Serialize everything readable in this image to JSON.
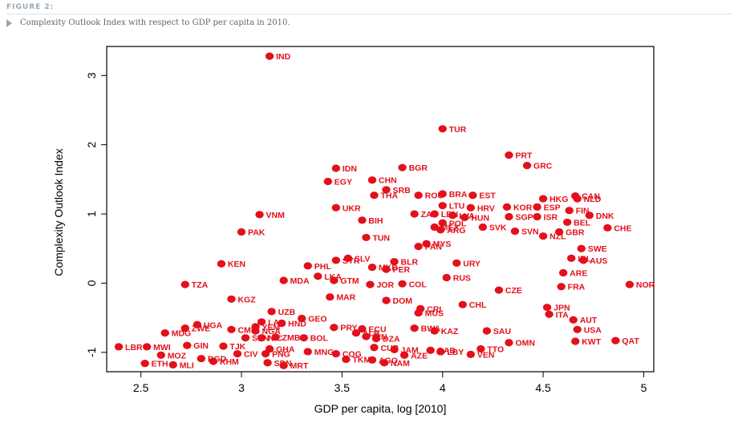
{
  "figure": {
    "label": "FIGURE 2:",
    "caption": "Complexity Outlook Index with respect to GDP per capita in 2010."
  },
  "chart_data": {
    "type": "scatter",
    "xlabel": "GDP per capita, log [2010]",
    "ylabel": "Complexity Outlook Index",
    "xlim": [
      2.33,
      5.05
    ],
    "ylim": [
      -1.28,
      3.42
    ],
    "xticks": [
      2.5,
      3,
      3.5,
      4,
      4.5,
      5
    ],
    "yticks": [
      -1,
      0,
      1,
      2,
      3
    ],
    "point_color": "#e3101b",
    "points": [
      {
        "label": "IND",
        "x": 3.14,
        "y": 3.28
      },
      {
        "label": "TUR",
        "x": 4.0,
        "y": 2.23
      },
      {
        "label": "PRT",
        "x": 4.33,
        "y": 1.85
      },
      {
        "label": "GRC",
        "x": 4.42,
        "y": 1.7
      },
      {
        "label": "IDN",
        "x": 3.47,
        "y": 1.66
      },
      {
        "label": "BGR",
        "x": 3.8,
        "y": 1.67
      },
      {
        "label": "EGY",
        "x": 3.43,
        "y": 1.47
      },
      {
        "label": "CHN",
        "x": 3.65,
        "y": 1.49
      },
      {
        "label": "SRB",
        "x": 3.72,
        "y": 1.35
      },
      {
        "label": "THA",
        "x": 3.66,
        "y": 1.27
      },
      {
        "label": "ROU",
        "x": 3.88,
        "y": 1.27
      },
      {
        "label": "BRA",
        "x": 4.0,
        "y": 1.29
      },
      {
        "label": "EST",
        "x": 4.15,
        "y": 1.27
      },
      {
        "label": "HKG",
        "x": 4.5,
        "y": 1.22
      },
      {
        "label": "CAN",
        "x": 4.66,
        "y": 1.26
      },
      {
        "label": "NLD",
        "x": 4.67,
        "y": 1.22
      },
      {
        "label": "LTU",
        "x": 4.0,
        "y": 1.12
      },
      {
        "label": "UKR",
        "x": 3.47,
        "y": 1.09
      },
      {
        "label": "HRV",
        "x": 4.14,
        "y": 1.09
      },
      {
        "label": "KOR",
        "x": 4.32,
        "y": 1.1
      },
      {
        "label": "ESP",
        "x": 4.47,
        "y": 1.1
      },
      {
        "label": "FIN",
        "x": 4.63,
        "y": 1.05
      },
      {
        "label": "VNM",
        "x": 3.09,
        "y": 0.99
      },
      {
        "label": "ZAF",
        "x": 3.86,
        "y": 1.0
      },
      {
        "label": "LBN",
        "x": 3.96,
        "y": 1.0
      },
      {
        "label": "LVA",
        "x": 4.05,
        "y": 0.98
      },
      {
        "label": "HUN",
        "x": 4.11,
        "y": 0.95
      },
      {
        "label": "SGP",
        "x": 4.33,
        "y": 0.96
      },
      {
        "label": "ISR",
        "x": 4.47,
        "y": 0.96
      },
      {
        "label": "DNK",
        "x": 4.73,
        "y": 0.98
      },
      {
        "label": "BIH",
        "x": 3.6,
        "y": 0.91
      },
      {
        "label": "POL",
        "x": 4.0,
        "y": 0.87
      },
      {
        "label": "BEL",
        "x": 4.62,
        "y": 0.88
      },
      {
        "label": "MEX",
        "x": 3.96,
        "y": 0.81
      },
      {
        "label": "ARG",
        "x": 3.99,
        "y": 0.77
      },
      {
        "label": "SVK",
        "x": 4.2,
        "y": 0.81
      },
      {
        "label": "CHE",
        "x": 4.82,
        "y": 0.8
      },
      {
        "label": "PAK",
        "x": 3.0,
        "y": 0.74
      },
      {
        "label": "SVN",
        "x": 4.36,
        "y": 0.75
      },
      {
        "label": "GBR",
        "x": 4.58,
        "y": 0.74
      },
      {
        "label": "NZL",
        "x": 4.5,
        "y": 0.68
      },
      {
        "label": "TUN",
        "x": 3.62,
        "y": 0.66
      },
      {
        "label": "MYS",
        "x": 3.92,
        "y": 0.57
      },
      {
        "label": "PAN",
        "x": 3.88,
        "y": 0.53
      },
      {
        "label": "SWE",
        "x": 4.69,
        "y": 0.5
      },
      {
        "label": "IRL",
        "x": 4.64,
        "y": 0.36
      },
      {
        "label": "AUS",
        "x": 4.7,
        "y": 0.33
      },
      {
        "label": "SLV",
        "x": 3.53,
        "y": 0.36
      },
      {
        "label": "SYR",
        "x": 3.47,
        "y": 0.33
      },
      {
        "label": "BLR",
        "x": 3.76,
        "y": 0.31
      },
      {
        "label": "URY",
        "x": 4.07,
        "y": 0.29
      },
      {
        "label": "KEN",
        "x": 2.9,
        "y": 0.28
      },
      {
        "label": "PHL",
        "x": 3.33,
        "y": 0.25
      },
      {
        "label": "MKD",
        "x": 3.65,
        "y": 0.23
      },
      {
        "label": "PER",
        "x": 3.72,
        "y": 0.2
      },
      {
        "label": "ARE",
        "x": 4.6,
        "y": 0.15
      },
      {
        "label": "LKA",
        "x": 3.38,
        "y": 0.1
      },
      {
        "label": "RUS",
        "x": 4.02,
        "y": 0.08
      },
      {
        "label": "MDA",
        "x": 3.21,
        "y": 0.04
      },
      {
        "label": "GTM",
        "x": 3.46,
        "y": 0.04
      },
      {
        "label": "JOR",
        "x": 3.64,
        "y": -0.02
      },
      {
        "label": "COL",
        "x": 3.8,
        "y": -0.01
      },
      {
        "label": "TZA",
        "x": 2.72,
        "y": -0.02
      },
      {
        "label": "FRA",
        "x": 4.59,
        "y": -0.05
      },
      {
        "label": "NOR",
        "x": 4.93,
        "y": -0.02
      },
      {
        "label": "CZE",
        "x": 4.28,
        "y": -0.1
      },
      {
        "label": "MAR",
        "x": 3.44,
        "y": -0.2
      },
      {
        "label": "DOM",
        "x": 3.72,
        "y": -0.25
      },
      {
        "label": "KGZ",
        "x": 2.95,
        "y": -0.23
      },
      {
        "label": "CHL",
        "x": 4.1,
        "y": -0.31
      },
      {
        "label": "JPN",
        "x": 4.52,
        "y": -0.35
      },
      {
        "label": "CRI",
        "x": 3.89,
        "y": -0.37
      },
      {
        "label": "UZB",
        "x": 3.15,
        "y": -0.41
      },
      {
        "label": "MUS",
        "x": 3.88,
        "y": -0.43
      },
      {
        "label": "ITA",
        "x": 4.53,
        "y": -0.45
      },
      {
        "label": "GEO",
        "x": 3.3,
        "y": -0.51
      },
      {
        "label": "AUT",
        "x": 4.65,
        "y": -0.53
      },
      {
        "label": "LAO",
        "x": 3.1,
        "y": -0.56
      },
      {
        "label": "HND",
        "x": 3.2,
        "y": -0.58
      },
      {
        "label": "UGA",
        "x": 2.78,
        "y": -0.6
      },
      {
        "label": "YEM",
        "x": 3.07,
        "y": -0.63
      },
      {
        "label": "PRY",
        "x": 3.46,
        "y": -0.64
      },
      {
        "label": "ECU",
        "x": 3.6,
        "y": -0.66
      },
      {
        "label": "BWA",
        "x": 3.86,
        "y": -0.65
      },
      {
        "label": "NGA",
        "x": 3.07,
        "y": -0.69
      },
      {
        "label": "ZWE",
        "x": 2.72,
        "y": -0.65
      },
      {
        "label": "CMR",
        "x": 2.95,
        "y": -0.67
      },
      {
        "label": "KAZ",
        "x": 3.96,
        "y": -0.69
      },
      {
        "label": "SAU",
        "x": 4.22,
        "y": -0.69
      },
      {
        "label": "USA",
        "x": 4.67,
        "y": -0.67
      },
      {
        "label": "MDG",
        "x": 2.62,
        "y": -0.72
      },
      {
        "label": "ALB",
        "x": 3.57,
        "y": -0.72
      },
      {
        "label": "IRN",
        "x": 3.62,
        "y": -0.77
      },
      {
        "label": "DZA",
        "x": 3.67,
        "y": -0.8
      },
      {
        "label": "ZMB",
        "x": 3.17,
        "y": -0.78
      },
      {
        "label": "SEN",
        "x": 3.02,
        "y": -0.79
      },
      {
        "label": "NIC",
        "x": 3.1,
        "y": -0.79
      },
      {
        "label": "BOL",
        "x": 3.31,
        "y": -0.79
      },
      {
        "label": "LBR",
        "x": 2.39,
        "y": -0.92
      },
      {
        "label": "MWI",
        "x": 2.53,
        "y": -0.92
      },
      {
        "label": "GIN",
        "x": 2.73,
        "y": -0.9
      },
      {
        "label": "TJK",
        "x": 2.91,
        "y": -0.91
      },
      {
        "label": "GHA",
        "x": 3.14,
        "y": -0.95
      },
      {
        "label": "MNG",
        "x": 3.33,
        "y": -0.99
      },
      {
        "label": "CUB",
        "x": 3.66,
        "y": -0.93
      },
      {
        "label": "JAM",
        "x": 3.76,
        "y": -0.96
      },
      {
        "label": "GAB",
        "x": 3.94,
        "y": -0.97
      },
      {
        "label": "LBY",
        "x": 3.99,
        "y": -0.99
      },
      {
        "label": "TTO",
        "x": 4.19,
        "y": -0.95
      },
      {
        "label": "OMN",
        "x": 4.33,
        "y": -0.86
      },
      {
        "label": "KWT",
        "x": 4.66,
        "y": -0.84
      },
      {
        "label": "QAT",
        "x": 4.86,
        "y": -0.83
      },
      {
        "label": "CIV",
        "x": 2.98,
        "y": -1.02
      },
      {
        "label": "PNG",
        "x": 3.12,
        "y": -1.02
      },
      {
        "label": "MOZ",
        "x": 2.6,
        "y": -1.04
      },
      {
        "label": "COG",
        "x": 3.47,
        "y": -1.02
      },
      {
        "label": "AZE",
        "x": 3.81,
        "y": -1.04
      },
      {
        "label": "VEN",
        "x": 4.14,
        "y": -1.03
      },
      {
        "label": "BGD",
        "x": 2.8,
        "y": -1.09
      },
      {
        "label": "KHM",
        "x": 2.86,
        "y": -1.13
      },
      {
        "label": "TKM",
        "x": 3.52,
        "y": -1.1
      },
      {
        "label": "AGO",
        "x": 3.65,
        "y": -1.11
      },
      {
        "label": "NAM",
        "x": 3.71,
        "y": -1.15
      },
      {
        "label": "SDN",
        "x": 3.13,
        "y": -1.15
      },
      {
        "label": "MRT",
        "x": 3.21,
        "y": -1.19
      },
      {
        "label": "ETH",
        "x": 2.52,
        "y": -1.16
      },
      {
        "label": "MLI",
        "x": 2.66,
        "y": -1.18
      }
    ]
  }
}
